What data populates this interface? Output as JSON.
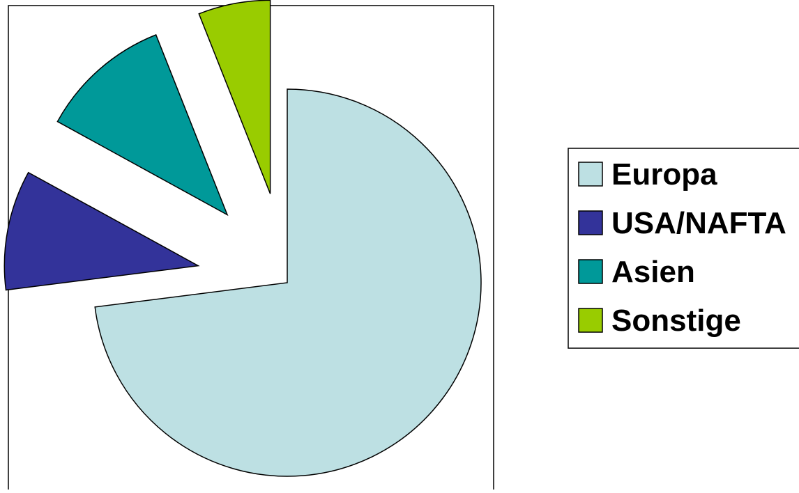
{
  "chart_data": {
    "type": "pie",
    "title": "",
    "exploded": true,
    "legend_position": "right",
    "categories": [
      "Europa",
      "USA/NAFTA",
      "Asien",
      "Sonstige"
    ],
    "values": [
      73,
      10,
      11,
      6
    ],
    "colors": [
      "#bde0e3",
      "#33339a",
      "#009999",
      "#99cc00"
    ]
  }
}
